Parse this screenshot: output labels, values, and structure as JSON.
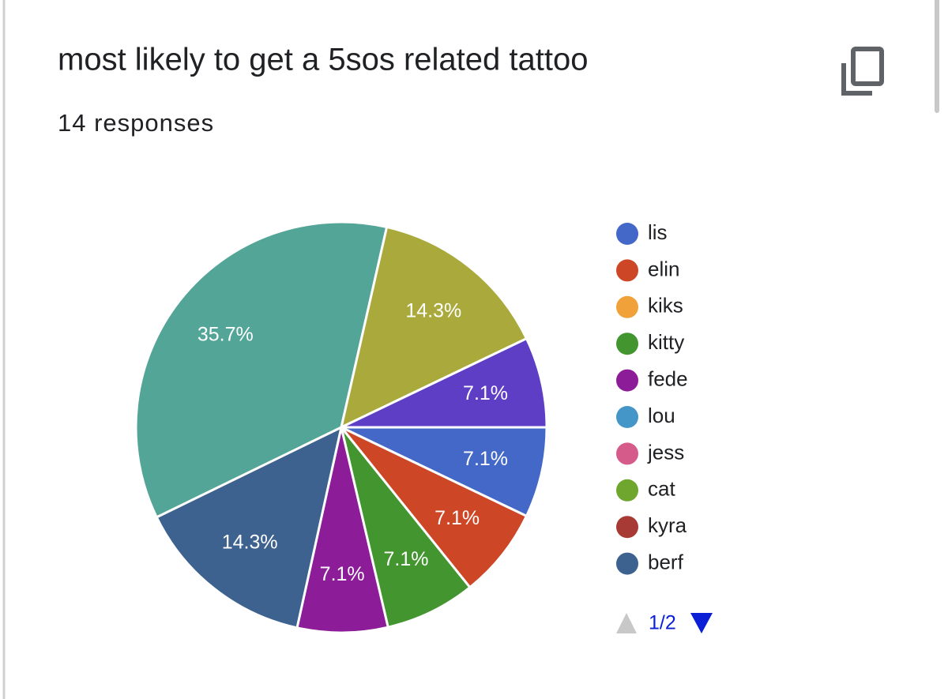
{
  "chart_data": {
    "type": "pie",
    "title": "most likely to get a 5sos related tattoo",
    "subtitle": "14 responses",
    "categories": [
      "lis",
      "elin",
      "kiks",
      "kitty",
      "fede",
      "lou",
      "jess",
      "cat",
      "kyra",
      "berf",
      null,
      null,
      null
    ],
    "values": [
      7.1,
      7.1,
      0,
      7.1,
      7.1,
      0,
      0,
      0,
      0,
      14.3,
      35.7,
      14.3,
      7.1
    ],
    "value_labels": [
      "7.1%",
      "7.1%",
      null,
      "7.1%",
      "7.1%",
      null,
      null,
      null,
      null,
      "14.3%",
      "35.7%",
      "14.3%",
      "7.1%"
    ],
    "colors": [
      "#4368c7",
      "#cd4727",
      "#f1a139",
      "#43962f",
      "#8d1c99",
      "#4596c8",
      "#d45b8a",
      "#6fa62e",
      "#a73a35",
      "#3e6290",
      "#52a597",
      "#aaaa3c",
      "#5e3ec5"
    ],
    "legend_page": "1/2"
  }
}
